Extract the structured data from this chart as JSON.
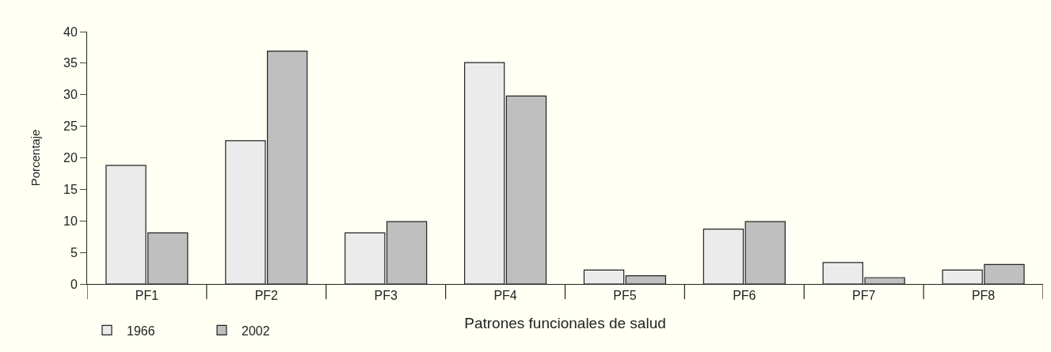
{
  "chart_data": {
    "type": "bar",
    "xlabel": "Patrones funcionales de salud",
    "ylabel": "Porcentaje",
    "categories": [
      "PF1",
      "PF2",
      "PF3",
      "PF4",
      "PF5",
      "PF6",
      "PF7",
      "PF8"
    ],
    "series": [
      {
        "name": "1966",
        "color": "#ebebeb",
        "values": [
          18.8,
          22.7,
          8.1,
          35.1,
          2.2,
          8.7,
          3.4,
          2.2
        ]
      },
      {
        "name": "2002",
        "color": "#bfbfbf",
        "values": [
          8.1,
          36.9,
          9.9,
          29.8,
          1.3,
          9.9,
          1.0,
          3.1
        ]
      }
    ],
    "ylim": [
      0,
      40
    ],
    "yticks": [
      0,
      5,
      10,
      15,
      20,
      25,
      30,
      35,
      40
    ],
    "grid": false,
    "legend": "bottom left"
  }
}
